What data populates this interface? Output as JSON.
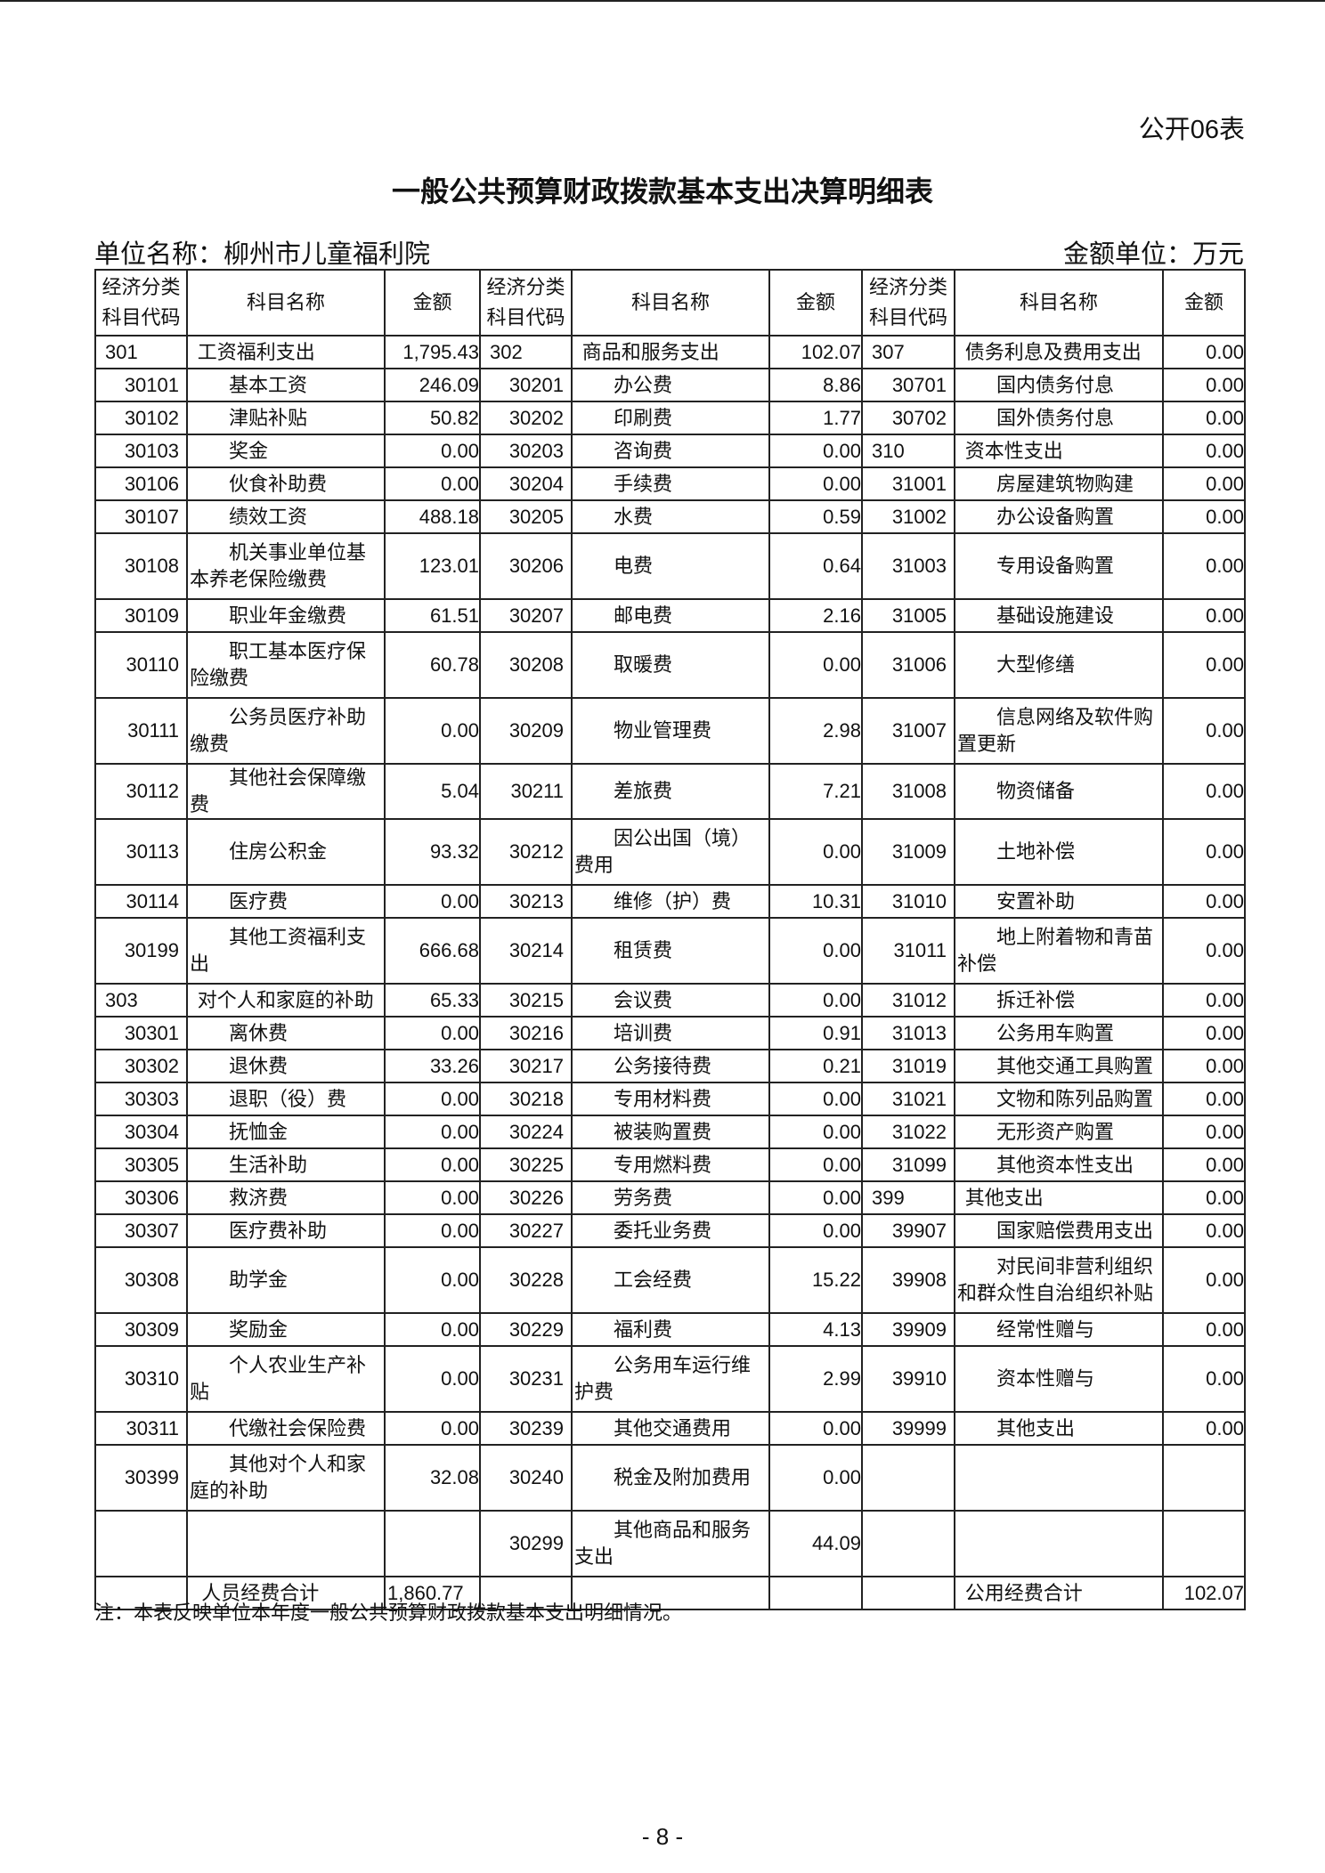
{
  "table_no": "公开06表",
  "title": "一般公共预算财政拨款基本支出决算明细表",
  "unit_name": "单位名称：柳州市儿童福利院",
  "money_unit": "金额单位：万元",
  "headers": [
    "经济分类科目代码",
    "科目名称",
    "金额",
    "经济分类科目代码",
    "科目名称",
    "金额",
    "经济分类科目代码",
    "科目名称",
    "金额"
  ],
  "rows": [
    {
      "tall": false,
      "cells": [
        "301",
        "工资福利支出",
        "1,795.43",
        "302",
        "商品和服务支出",
        "102.07",
        "307",
        "债务利息及费用支出",
        "0.00"
      ]
    },
    {
      "tall": false,
      "cells": [
        "30101",
        "基本工资",
        "246.09",
        "30201",
        "办公费",
        "8.86",
        "30701",
        "国内债务付息",
        "0.00"
      ]
    },
    {
      "tall": false,
      "cells": [
        "30102",
        "津贴补贴",
        "50.82",
        "30202",
        "印刷费",
        "1.77",
        "30702",
        "国外债务付息",
        "0.00"
      ]
    },
    {
      "tall": false,
      "cells": [
        "30103",
        "奖金",
        "0.00",
        "30203",
        "咨询费",
        "0.00",
        "310",
        "资本性支出",
        "0.00"
      ]
    },
    {
      "tall": false,
      "cells": [
        "30106",
        "伙食补助费",
        "0.00",
        "30204",
        "手续费",
        "0.00",
        "31001",
        "房屋建筑物购建",
        "0.00"
      ]
    },
    {
      "tall": false,
      "cells": [
        "30107",
        "绩效工资",
        "488.18",
        "30205",
        "水费",
        "0.59",
        "31002",
        "办公设备购置",
        "0.00"
      ]
    },
    {
      "tall": true,
      "cells": [
        "30108",
        "机关事业单位基本养老保险缴费",
        "123.01",
        "30206",
        "电费",
        "0.64",
        "31003",
        "专用设备购置",
        "0.00"
      ]
    },
    {
      "tall": false,
      "cells": [
        "30109",
        "职业年金缴费",
        "61.51",
        "30207",
        "邮电费",
        "2.16",
        "31005",
        "基础设施建设",
        "0.00"
      ]
    },
    {
      "tall": true,
      "cells": [
        "30110",
        "职工基本医疗保险缴费",
        "60.78",
        "30208",
        "取暖费",
        "0.00",
        "31006",
        "大型修缮",
        "0.00"
      ]
    },
    {
      "tall": true,
      "cells": [
        "30111",
        "公务员医疗补助缴费",
        "0.00",
        "30209",
        "物业管理费",
        "2.98",
        "31007",
        "信息网络及软件购置更新",
        "0.00"
      ]
    },
    {
      "tall": false,
      "cells": [
        "30112",
        "其他社会保障缴费",
        "5.04",
        "30211",
        "差旅费",
        "7.21",
        "31008",
        "物资储备",
        "0.00"
      ]
    },
    {
      "tall": true,
      "cells": [
        "30113",
        "住房公积金",
        "93.32",
        "30212",
        "因公出国（境）费用",
        "0.00",
        "31009",
        "土地补偿",
        "0.00"
      ]
    },
    {
      "tall": false,
      "cells": [
        "30114",
        "医疗费",
        "0.00",
        "30213",
        "维修（护）费",
        "10.31",
        "31010",
        "安置补助",
        "0.00"
      ]
    },
    {
      "tall": true,
      "cells": [
        "30199",
        "其他工资福利支出",
        "666.68",
        "30214",
        "租赁费",
        "0.00",
        "31011",
        "地上附着物和青苗补偿",
        "0.00"
      ]
    },
    {
      "tall": false,
      "cells": [
        "303",
        "对个人和家庭的补助",
        "65.33",
        "30215",
        "会议费",
        "0.00",
        "31012",
        "拆迁补偿",
        "0.00"
      ]
    },
    {
      "tall": false,
      "cells": [
        "30301",
        "离休费",
        "0.00",
        "30216",
        "培训费",
        "0.91",
        "31013",
        "公务用车购置",
        "0.00"
      ]
    },
    {
      "tall": false,
      "cells": [
        "30302",
        "退休费",
        "33.26",
        "30217",
        "公务接待费",
        "0.21",
        "31019",
        "其他交通工具购置",
        "0.00"
      ]
    },
    {
      "tall": false,
      "cells": [
        "30303",
        "退职（役）费",
        "0.00",
        "30218",
        "专用材料费",
        "0.00",
        "31021",
        "文物和陈列品购置",
        "0.00"
      ]
    },
    {
      "tall": false,
      "cells": [
        "30304",
        "抚恤金",
        "0.00",
        "30224",
        "被装购置费",
        "0.00",
        "31022",
        "无形资产购置",
        "0.00"
      ]
    },
    {
      "tall": false,
      "cells": [
        "30305",
        "生活补助",
        "0.00",
        "30225",
        "专用燃料费",
        "0.00",
        "31099",
        "其他资本性支出",
        "0.00"
      ]
    },
    {
      "tall": false,
      "cells": [
        "30306",
        "救济费",
        "0.00",
        "30226",
        "劳务费",
        "0.00",
        "399",
        "其他支出",
        "0.00"
      ]
    },
    {
      "tall": false,
      "cells": [
        "30307",
        "医疗费补助",
        "0.00",
        "30227",
        "委托业务费",
        "0.00",
        "39907",
        "国家赔偿费用支出",
        "0.00"
      ]
    },
    {
      "tall": true,
      "cells": [
        "30308",
        "助学金",
        "0.00",
        "30228",
        "工会经费",
        "15.22",
        "39908",
        "对民间非营利组织和群众性自治组织补贴",
        "0.00"
      ]
    },
    {
      "tall": false,
      "cells": [
        "30309",
        "奖励金",
        "0.00",
        "30229",
        "福利费",
        "4.13",
        "39909",
        "经常性赠与",
        "0.00"
      ]
    },
    {
      "tall": true,
      "cells": [
        "30310",
        "个人农业生产补贴",
        "0.00",
        "30231",
        "公务用车运行维护费",
        "2.99",
        "39910",
        "资本性赠与",
        "0.00"
      ]
    },
    {
      "tall": false,
      "cells": [
        "30311",
        "代缴社会保险费",
        "0.00",
        "30239",
        "其他交通费用",
        "0.00",
        "39999",
        "其他支出",
        "0.00"
      ]
    },
    {
      "tall": true,
      "cells": [
        "30399",
        "其他对个人和家庭的补助",
        "32.08",
        "30240",
        "税金及附加费用",
        "0.00",
        "",
        "",
        ""
      ]
    },
    {
      "tall": true,
      "cells": [
        "",
        "",
        "",
        "30299",
        "其他商品和服务支出",
        "44.09",
        "",
        "",
        ""
      ]
    }
  ],
  "totals": {
    "personnel_label": "人员经费合计",
    "personnel_amount": "1,860.77",
    "public_label": "公用经费合计",
    "public_amount": "102.07"
  },
  "note": "注：本表反映单位本年度一般公共预算财政拨款基本支出明细情况。",
  "page_number": "- 8 -"
}
